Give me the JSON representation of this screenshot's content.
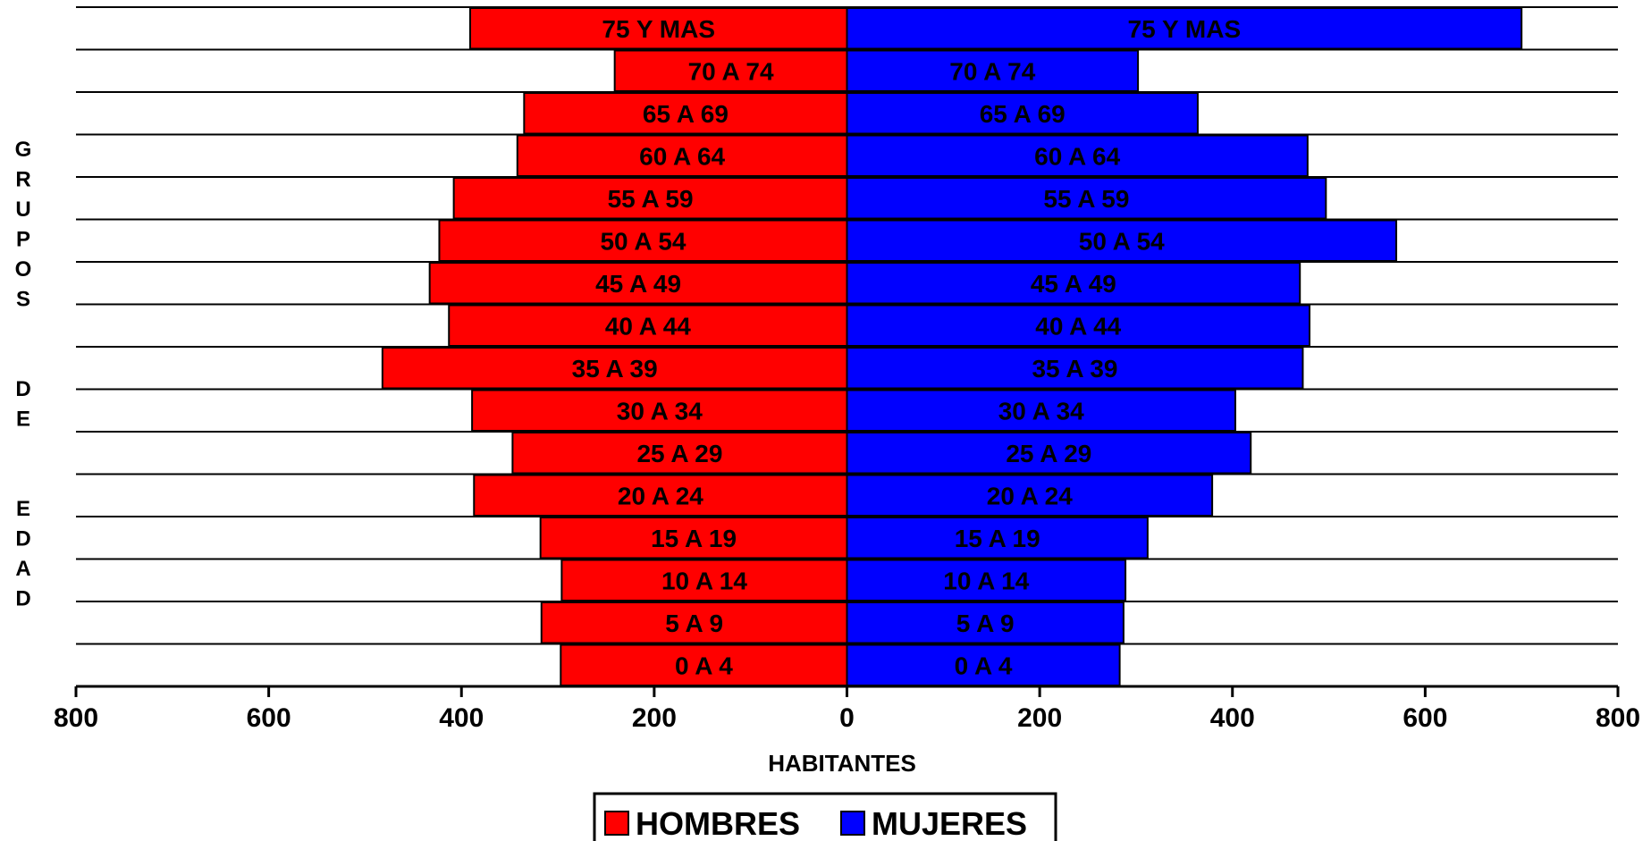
{
  "chart_data": {
    "type": "bar",
    "orientation": "horizontal",
    "subtype": "population-pyramid",
    "categories": [
      "75 Y MAS",
      "70 A 74",
      "65 A 69",
      "60 A 64",
      "55 A 59",
      "50 A 54",
      "45 A 49",
      "40 A 44",
      "35 A 39",
      "30 A 34",
      "25 A 29",
      "20 A 24",
      "15 A 19",
      "10 A 14",
      "5  A  9",
      "0  A  4"
    ],
    "series": [
      {
        "name": "HOMBRES",
        "color": "#ff0000",
        "side": "left",
        "values": [
          391,
          241,
          335,
          342,
          408,
          423,
          433,
          413,
          482,
          389,
          347,
          387,
          318,
          296,
          317,
          297
        ]
      },
      {
        "name": "MUJERES",
        "color": "#0000ff",
        "side": "right",
        "values": [
          700,
          302,
          364,
          478,
          497,
          570,
          470,
          480,
          473,
          403,
          419,
          379,
          312,
          289,
          287,
          283
        ]
      }
    ],
    "xlabel": "HABITANTES",
    "ylabel": "GRUPOS  DE  EDAD",
    "xlim": [
      -800,
      800
    ],
    "x_ticks": [
      -800,
      -600,
      -400,
      -200,
      0,
      200,
      400,
      600,
      800
    ],
    "x_tick_labels": [
      "800",
      "600",
      "400",
      "200",
      "0",
      "200",
      "400",
      "600",
      "800"
    ],
    "grid": "horizontal lines between age groups",
    "legend": {
      "position": "bottom-center",
      "entries": [
        "HOMBRES",
        "MUJERES"
      ]
    }
  }
}
